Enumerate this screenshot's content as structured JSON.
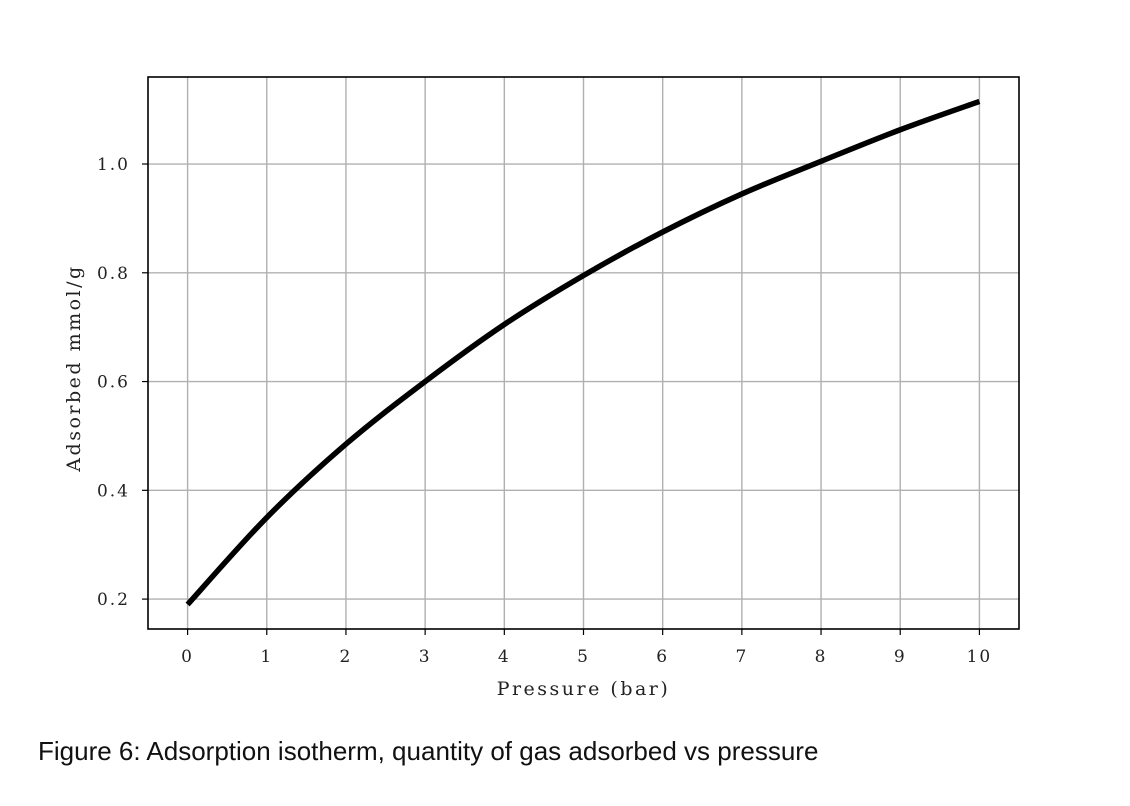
{
  "caption": "Figure 6: Adsorption isotherm, quantity of gas adsorbed vs pressure",
  "chart_data": {
    "type": "line",
    "title": "",
    "xlabel": "Pressure (bar)",
    "ylabel": "Adsorbed mmol/g",
    "xlim": [
      -0.5,
      10.5
    ],
    "ylim": [
      0.145,
      1.16
    ],
    "xticks": [
      0,
      1,
      2,
      3,
      4,
      5,
      6,
      7,
      8,
      9,
      10
    ],
    "xtick_labels": [
      "0",
      "1",
      "2",
      "3",
      "4",
      "5",
      "6",
      "7",
      "8",
      "9",
      "10"
    ],
    "yticks": [
      0.2,
      0.4,
      0.6,
      0.8,
      1.0
    ],
    "ytick_labels": [
      "0.2",
      "0.4",
      "0.6",
      "0.8",
      "1.0"
    ],
    "grid": true,
    "legend": false,
    "series": [
      {
        "color": "#000000",
        "x": [
          0,
          1,
          2,
          3,
          4,
          5,
          6,
          7,
          8,
          9,
          10
        ],
        "y": [
          0.19,
          0.35,
          0.485,
          0.6,
          0.705,
          0.795,
          0.875,
          0.945,
          1.005,
          1.063,
          1.115
        ]
      }
    ]
  }
}
